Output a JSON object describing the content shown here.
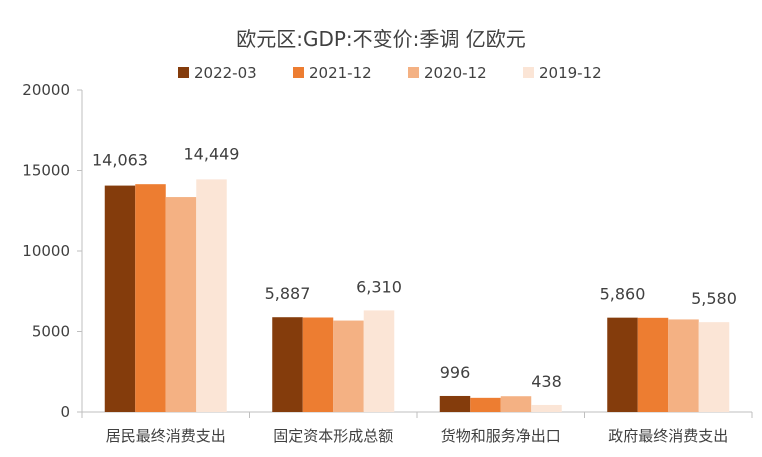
{
  "chart_data": {
    "type": "bar",
    "title": "欧元区:GDP:不变价:季调 亿欧元",
    "xlabel": "",
    "ylabel": "",
    "ylim": [
      0,
      20000
    ],
    "yticks": [
      0,
      5000,
      10000,
      15000,
      20000
    ],
    "yticks_labels": [
      "0",
      "5000",
      "10000",
      "15000",
      "20000"
    ],
    "grid": false,
    "legend_position": "top",
    "categories": [
      "居民最终消费支出",
      "固定资本形成总额",
      "货物和服务净出口",
      "政府最终消费支出"
    ],
    "series": [
      {
        "name": "2022-03",
        "color": "#843C0C",
        "values": [
          14063,
          5887,
          996,
          5860
        ]
      },
      {
        "name": "2021-12",
        "color": "#ED7D31",
        "values": [
          14150,
          5870,
          880,
          5850
        ]
      },
      {
        "name": "2020-12",
        "color": "#F4B183",
        "values": [
          13350,
          5680,
          980,
          5750
        ]
      },
      {
        "name": "2019-12",
        "color": "#FBE5D6",
        "values": [
          14449,
          6310,
          438,
          5580
        ]
      }
    ],
    "data_labels": [
      {
        "category_index": 0,
        "series_index": 0,
        "text": "14,063"
      },
      {
        "category_index": 0,
        "series_index": 3,
        "text": "14,449"
      },
      {
        "category_index": 1,
        "series_index": 0,
        "text": "5,887"
      },
      {
        "category_index": 1,
        "series_index": 3,
        "text": "6,310"
      },
      {
        "category_index": 2,
        "series_index": 0,
        "text": "996"
      },
      {
        "category_index": 2,
        "series_index": 3,
        "text": "438"
      },
      {
        "category_index": 3,
        "series_index": 0,
        "text": "5,860"
      },
      {
        "category_index": 3,
        "series_index": 3,
        "text": "5,580"
      }
    ]
  }
}
